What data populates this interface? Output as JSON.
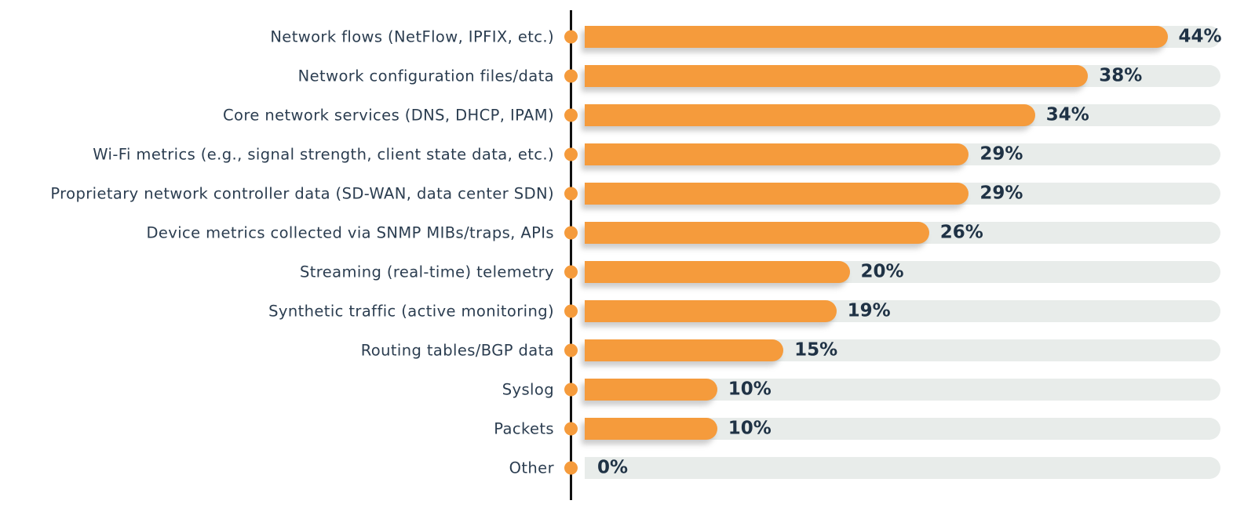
{
  "chart_data": {
    "type": "bar",
    "orientation": "horizontal",
    "title": "",
    "xlabel": "",
    "ylabel": "",
    "unit": "%",
    "xlim": [
      0,
      48
    ],
    "grid": false,
    "legend": "none",
    "categories": [
      "Network flows (NetFlow, IPFIX, etc.)",
      "Network configuration files/data",
      "Core network services (DNS, DHCP, IPAM)",
      "Wi-Fi metrics (e.g., signal strength, client state data, etc.)",
      "Proprietary network controller data (SD-WAN, data center SDN)",
      "Device metrics collected via SNMP MIBs/traps, APIs",
      "Streaming (real-time) telemetry",
      "Synthetic traffic (active monitoring)",
      "Routing tables/BGP data",
      "Syslog",
      "Packets",
      "Other"
    ],
    "values": [
      44,
      38,
      34,
      29,
      29,
      26,
      20,
      19,
      15,
      10,
      10,
      0
    ],
    "value_labels": [
      "44%",
      "38%",
      "34%",
      "29%",
      "29%",
      "26%",
      "20%",
      "19%",
      "15%",
      "10%",
      "10%",
      "0%"
    ],
    "colors": {
      "bar": "#f59b3c",
      "track": "#e8ecea",
      "dot": "#f59b3c",
      "axis": "#111111",
      "category_text": "#2b3d50",
      "value_text": "#1f3245",
      "background": "#ffffff"
    }
  }
}
